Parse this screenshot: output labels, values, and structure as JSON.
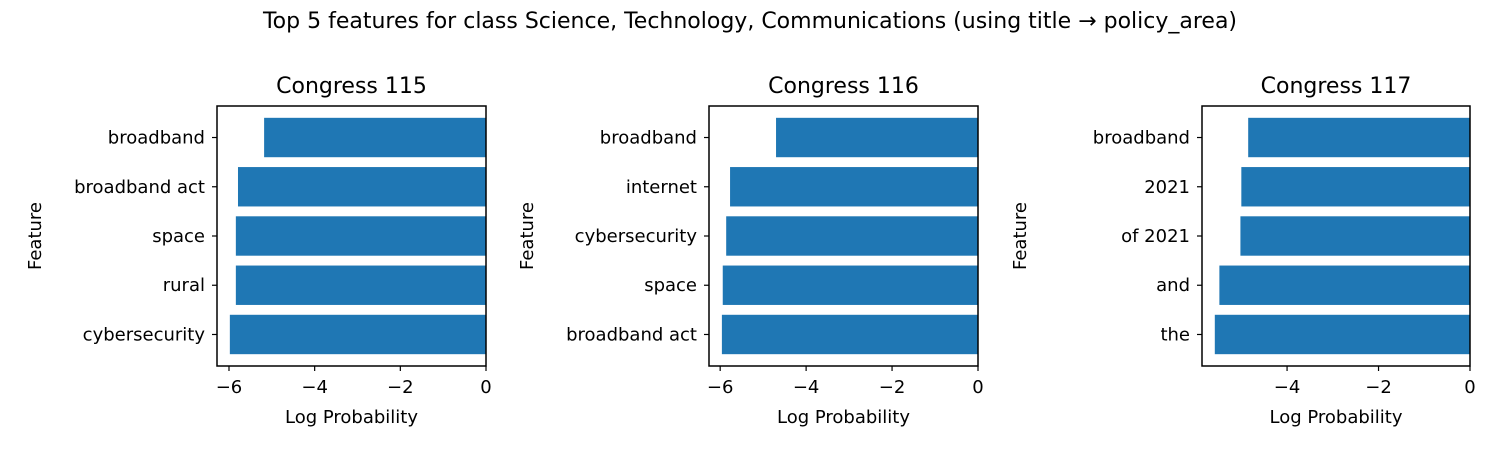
{
  "suptitle": "Top 5 features for class Science, Technology, Communications (using title → policy_area)",
  "chart_data": [
    {
      "type": "bar",
      "orientation": "horizontal",
      "title": "Congress 115",
      "xlabel": "Log Probability",
      "ylabel": "Feature",
      "categories": [
        "broadband",
        "broadband act",
        "space",
        "rural",
        "cybersecurity"
      ],
      "values": [
        -5.18,
        -5.79,
        -5.84,
        -5.84,
        -5.98
      ],
      "xlim": [
        -6.28,
        0
      ],
      "xticks": [
        -6,
        -4,
        -2,
        0
      ],
      "xtick_labels": [
        "−6",
        "−4",
        "−2",
        "0"
      ],
      "bar_color": "#1f77b4",
      "grid": false
    },
    {
      "type": "bar",
      "orientation": "horizontal",
      "title": "Congress 116",
      "xlabel": "Log Probability",
      "ylabel": "Feature",
      "categories": [
        "broadband",
        "internet",
        "cybersecurity",
        "space",
        "broadband act"
      ],
      "values": [
        -4.7,
        -5.77,
        -5.86,
        -5.94,
        -5.96
      ],
      "xlim": [
        -6.26,
        0
      ],
      "xticks": [
        -6,
        -4,
        -2,
        0
      ],
      "xtick_labels": [
        "−6",
        "−4",
        "−2",
        "0"
      ],
      "bar_color": "#1f77b4",
      "grid": false
    },
    {
      "type": "bar",
      "orientation": "horizontal",
      "title": "Congress 117",
      "xlabel": "Log Probability",
      "ylabel": "Feature",
      "categories": [
        "broadband",
        "2021",
        "of 2021",
        "and",
        "the"
      ],
      "values": [
        -4.85,
        -5.0,
        -5.02,
        -5.48,
        -5.58
      ],
      "xlim": [
        -5.86,
        0
      ],
      "xticks": [
        -4,
        -2,
        0
      ],
      "xtick_labels": [
        "−4",
        "−2",
        "0"
      ],
      "bar_color": "#1f77b4",
      "grid": false
    }
  ]
}
